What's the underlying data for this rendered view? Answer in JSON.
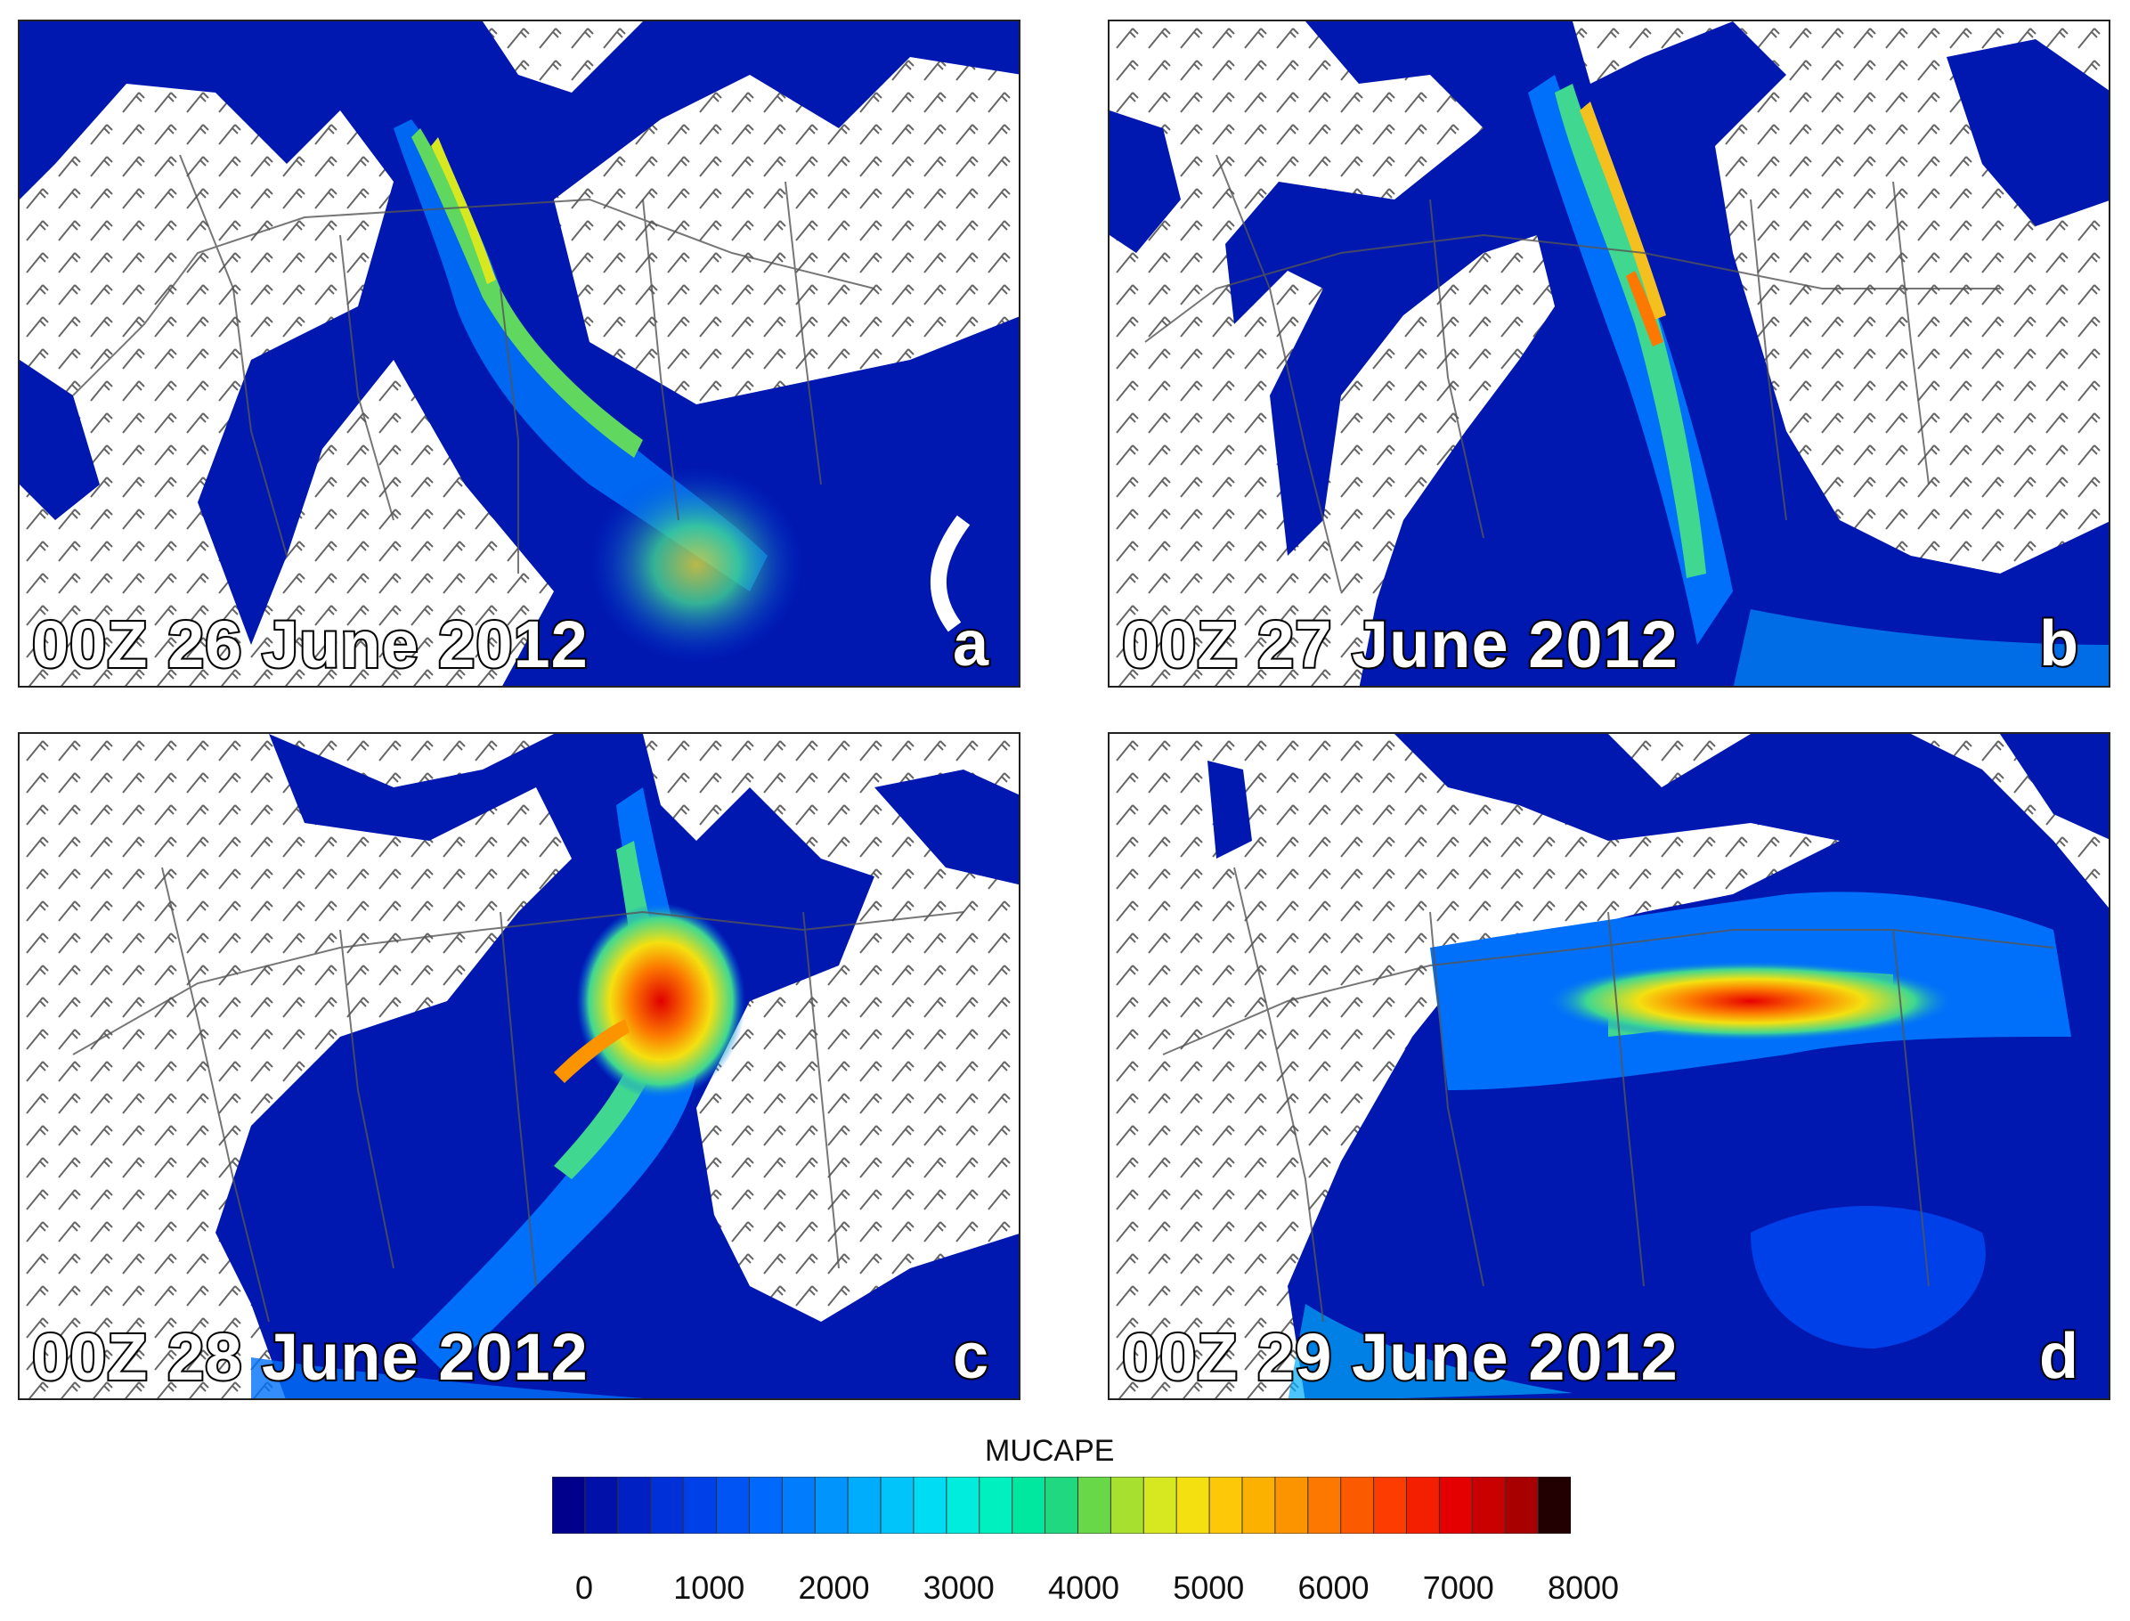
{
  "panels": [
    {
      "id": "a",
      "date": "00Z 26 June 2012",
      "letter": "a"
    },
    {
      "id": "b",
      "date": "00Z 27 June 2012",
      "letter": "b"
    },
    {
      "id": "c",
      "date": "00Z 28 June 2012",
      "letter": "c"
    },
    {
      "id": "d",
      "date": "00Z 29 June 2012",
      "letter": "d"
    }
  ],
  "colorbar": {
    "title": "MUCAPE",
    "min": 0,
    "max": 8000,
    "tick_labels": [
      "0",
      "1000",
      "2000",
      "3000",
      "4000",
      "5000",
      "6000",
      "7000",
      "8000"
    ],
    "colors": [
      "#00008c",
      "#0010a8",
      "#0020c4",
      "#0030d8",
      "#0040e8",
      "#0054f4",
      "#0068fa",
      "#007cfc",
      "#0094fc",
      "#00acfc",
      "#00c4fa",
      "#00dcf4",
      "#00ecdc",
      "#00f0c0",
      "#00e8a0",
      "#20d880",
      "#68d848",
      "#a8e030",
      "#d8e820",
      "#f4e010",
      "#fcc808",
      "#fcb000",
      "#fc9400",
      "#fc7800",
      "#fc5a00",
      "#fc3c00",
      "#f41e00",
      "#e40000",
      "#c80000",
      "#a80000",
      "#200000"
    ]
  }
}
